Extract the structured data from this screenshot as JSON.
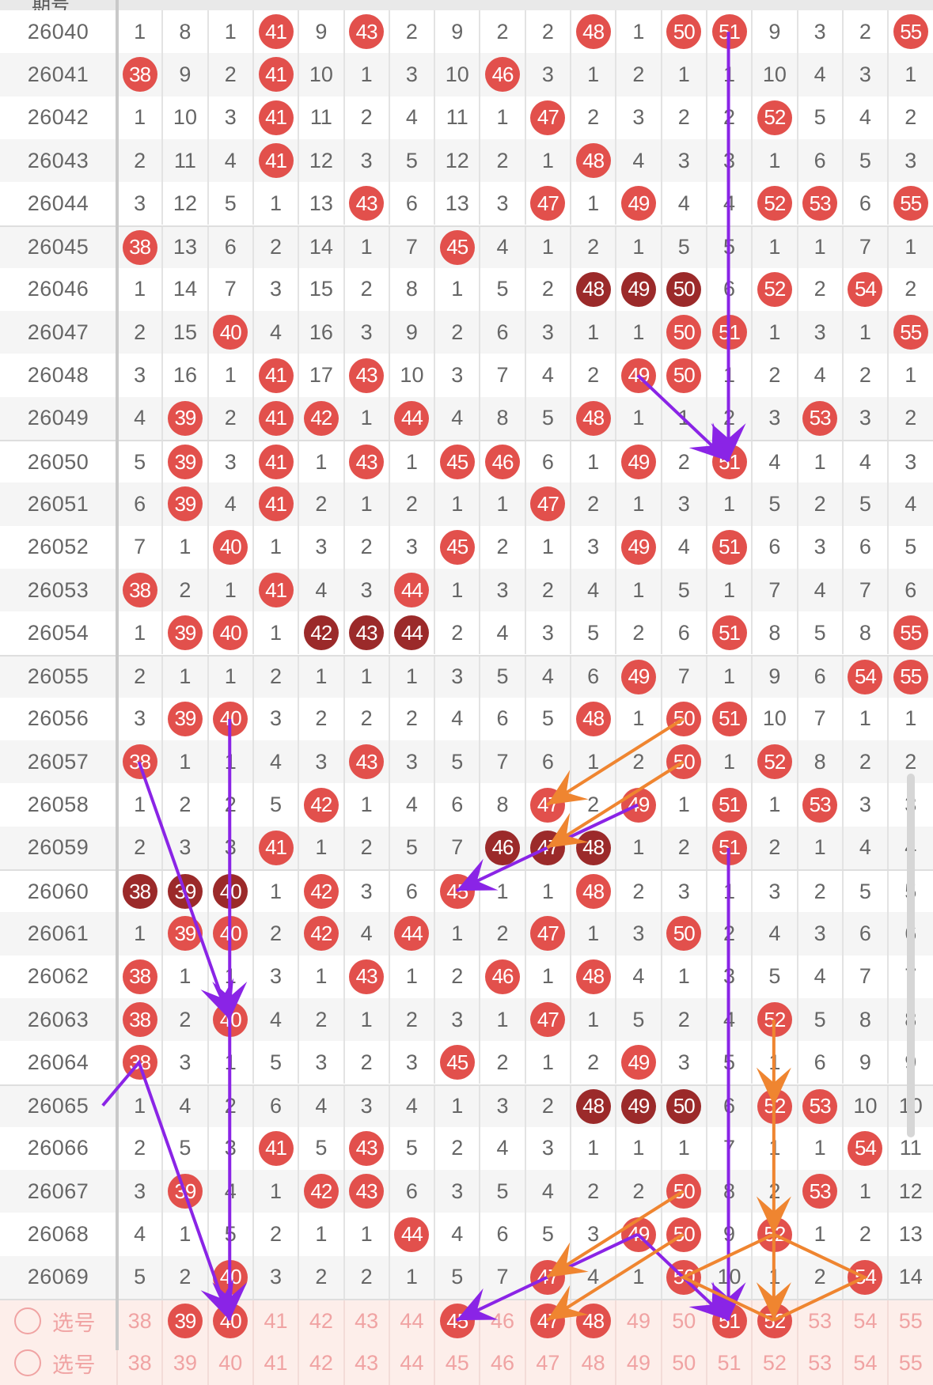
{
  "header": {
    "period_label": "期号"
  },
  "select_label": "选号",
  "colors": {
    "ball": "#e2504c",
    "ball_dark": "#9b2a2a",
    "purple": "#8a24e6",
    "orange": "#ef8530",
    "select_bg": "#fdeeea"
  },
  "chart_data": {
    "type": "table",
    "columns": [
      38,
      39,
      40,
      41,
      42,
      43,
      44,
      45,
      46,
      47,
      48,
      49,
      50,
      51,
      52,
      53,
      54,
      55
    ],
    "rows": [
      {
        "period": "26040",
        "values": [
          1,
          8,
          1,
          41,
          9,
          43,
          2,
          9,
          2,
          2,
          48,
          1,
          50,
          51,
          9,
          3,
          2,
          55
        ],
        "dark": []
      },
      {
        "period": "26041",
        "values": [
          38,
          9,
          2,
          41,
          10,
          1,
          3,
          10,
          46,
          3,
          1,
          2,
          1,
          1,
          10,
          4,
          3,
          1
        ],
        "dark": []
      },
      {
        "period": "26042",
        "values": [
          1,
          10,
          3,
          41,
          11,
          2,
          4,
          11,
          1,
          47,
          2,
          3,
          2,
          2,
          52,
          5,
          4,
          2
        ],
        "dark": []
      },
      {
        "period": "26043",
        "values": [
          2,
          11,
          4,
          41,
          12,
          3,
          5,
          12,
          2,
          1,
          48,
          4,
          3,
          3,
          1,
          6,
          5,
          3
        ],
        "dark": []
      },
      {
        "period": "26044",
        "values": [
          3,
          12,
          5,
          1,
          13,
          43,
          6,
          13,
          3,
          47,
          1,
          49,
          4,
          4,
          52,
          53,
          6,
          55
        ],
        "dark": []
      },
      {
        "period": "26045",
        "values": [
          38,
          13,
          6,
          2,
          14,
          1,
          7,
          45,
          4,
          1,
          2,
          1,
          5,
          5,
          1,
          1,
          7,
          1
        ],
        "dark": []
      },
      {
        "period": "26046",
        "values": [
          1,
          14,
          7,
          3,
          15,
          2,
          8,
          1,
          5,
          2,
          48,
          49,
          50,
          6,
          52,
          2,
          54,
          2
        ],
        "dark": [
          48,
          49,
          50
        ]
      },
      {
        "period": "26047",
        "values": [
          2,
          15,
          40,
          4,
          16,
          3,
          9,
          2,
          6,
          3,
          1,
          1,
          50,
          51,
          1,
          3,
          1,
          55
        ],
        "dark": []
      },
      {
        "period": "26048",
        "values": [
          3,
          16,
          1,
          41,
          17,
          43,
          10,
          3,
          7,
          4,
          2,
          49,
          50,
          1,
          2,
          4,
          2,
          1
        ],
        "dark": []
      },
      {
        "period": "26049",
        "values": [
          4,
          39,
          2,
          41,
          42,
          1,
          44,
          4,
          8,
          5,
          48,
          1,
          1,
          2,
          3,
          53,
          3,
          2
        ],
        "dark": []
      },
      {
        "period": "26050",
        "values": [
          5,
          39,
          3,
          41,
          1,
          43,
          1,
          45,
          46,
          6,
          1,
          49,
          2,
          51,
          4,
          1,
          4,
          3
        ],
        "dark": []
      },
      {
        "period": "26051",
        "values": [
          6,
          39,
          4,
          41,
          2,
          1,
          2,
          1,
          1,
          47,
          2,
          1,
          3,
          1,
          5,
          2,
          5,
          4
        ],
        "dark": []
      },
      {
        "period": "26052",
        "values": [
          7,
          1,
          40,
          1,
          3,
          2,
          3,
          45,
          2,
          1,
          3,
          49,
          4,
          51,
          6,
          3,
          6,
          5
        ],
        "dark": []
      },
      {
        "period": "26053",
        "values": [
          38,
          2,
          1,
          41,
          4,
          3,
          44,
          1,
          3,
          2,
          4,
          1,
          5,
          1,
          7,
          4,
          7,
          6
        ],
        "dark": []
      },
      {
        "period": "26054",
        "values": [
          1,
          39,
          40,
          1,
          42,
          43,
          44,
          2,
          4,
          3,
          5,
          2,
          6,
          51,
          8,
          5,
          8,
          55
        ],
        "dark": [
          42,
          43,
          44
        ]
      },
      {
        "period": "26055",
        "values": [
          2,
          1,
          1,
          2,
          1,
          1,
          1,
          3,
          5,
          4,
          6,
          49,
          7,
          1,
          9,
          6,
          54,
          55
        ],
        "dark": []
      },
      {
        "period": "26056",
        "values": [
          3,
          39,
          40,
          3,
          2,
          2,
          2,
          4,
          6,
          5,
          48,
          1,
          50,
          51,
          10,
          7,
          1,
          1
        ],
        "dark": []
      },
      {
        "period": "26057",
        "values": [
          38,
          1,
          1,
          4,
          3,
          43,
          3,
          5,
          7,
          6,
          1,
          2,
          50,
          1,
          52,
          8,
          2,
          2
        ],
        "dark": []
      },
      {
        "period": "26058",
        "values": [
          1,
          2,
          2,
          5,
          42,
          1,
          4,
          6,
          8,
          47,
          2,
          49,
          1,
          51,
          1,
          53,
          3,
          3
        ],
        "dark": []
      },
      {
        "period": "26059",
        "values": [
          2,
          3,
          3,
          41,
          1,
          2,
          5,
          7,
          46,
          47,
          48,
          1,
          2,
          51,
          2,
          1,
          4,
          4
        ],
        "dark": [
          46,
          47,
          48
        ]
      },
      {
        "period": "26060",
        "values": [
          38,
          39,
          40,
          1,
          42,
          3,
          6,
          45,
          1,
          1,
          48,
          2,
          3,
          1,
          3,
          2,
          5,
          5
        ],
        "dark": [
          38,
          39,
          40
        ]
      },
      {
        "period": "26061",
        "values": [
          1,
          39,
          40,
          2,
          42,
          4,
          44,
          1,
          2,
          47,
          1,
          3,
          50,
          2,
          4,
          3,
          6,
          6
        ],
        "dark": []
      },
      {
        "period": "26062",
        "values": [
          38,
          1,
          1,
          3,
          1,
          43,
          1,
          2,
          46,
          1,
          48,
          4,
          1,
          3,
          5,
          4,
          7,
          7
        ],
        "dark": []
      },
      {
        "period": "26063",
        "values": [
          38,
          2,
          40,
          4,
          2,
          1,
          2,
          3,
          1,
          47,
          1,
          5,
          2,
          4,
          52,
          5,
          8,
          8
        ],
        "dark": []
      },
      {
        "period": "26064",
        "values": [
          38,
          3,
          1,
          5,
          3,
          2,
          3,
          45,
          2,
          1,
          2,
          49,
          3,
          5,
          1,
          6,
          9,
          9
        ],
        "dark": []
      },
      {
        "period": "26065",
        "values": [
          1,
          4,
          2,
          6,
          4,
          3,
          4,
          1,
          3,
          2,
          48,
          49,
          50,
          6,
          52,
          53,
          10,
          10
        ],
        "dark": [
          48,
          49,
          50
        ]
      },
      {
        "period": "26066",
        "values": [
          2,
          5,
          3,
          41,
          5,
          43,
          5,
          2,
          4,
          3,
          1,
          1,
          1,
          7,
          1,
          1,
          54,
          11
        ],
        "dark": []
      },
      {
        "period": "26067",
        "values": [
          3,
          39,
          4,
          1,
          42,
          43,
          6,
          3,
          5,
          4,
          2,
          2,
          50,
          8,
          2,
          53,
          1,
          12
        ],
        "dark": []
      },
      {
        "period": "26068",
        "values": [
          4,
          1,
          5,
          2,
          1,
          1,
          44,
          4,
          6,
          5,
          3,
          49,
          50,
          9,
          52,
          1,
          2,
          13
        ],
        "dark": []
      },
      {
        "period": "26069",
        "values": [
          5,
          2,
          40,
          3,
          2,
          2,
          1,
          5,
          7,
          47,
          4,
          1,
          50,
          10,
          1,
          2,
          54,
          14
        ],
        "dark": []
      }
    ],
    "selected": [
      39,
      40,
      45,
      47,
      48,
      51,
      52
    ],
    "lines": [
      {
        "color": "purple",
        "points": [
          [
            51,
            "26040"
          ],
          [
            51,
            "26050"
          ]
        ]
      },
      {
        "color": "purple",
        "points": [
          [
            49,
            "26048"
          ],
          [
            51,
            "26050"
          ]
        ]
      },
      {
        "color": "purple",
        "points": [
          [
            40,
            "26056"
          ],
          [
            40,
            "26063"
          ]
        ]
      },
      {
        "color": "purple",
        "points": [
          [
            38,
            "26057"
          ],
          [
            40,
            "26063"
          ]
        ]
      },
      {
        "color": "purple",
        "points": [
          [
            49,
            "26058"
          ],
          [
            47,
            "26059"
          ],
          [
            45,
            "26060"
          ]
        ]
      },
      {
        "color": "purple",
        "points": [
          [
            51,
            "26059"
          ],
          [
            51,
            "select"
          ]
        ]
      },
      {
        "color": "purple",
        "points": [
          [
            37.2,
            "26065"
          ],
          [
            38,
            "26064"
          ],
          [
            40,
            "select"
          ]
        ]
      },
      {
        "color": "purple",
        "points": [
          [
            40,
            "26063"
          ],
          [
            40,
            "select"
          ]
        ]
      },
      {
        "color": "purple",
        "points": [
          [
            49,
            "26068"
          ],
          [
            47,
            "26069"
          ],
          [
            45,
            "select"
          ]
        ]
      },
      {
        "color": "purple",
        "points": [
          [
            49,
            "26068"
          ],
          [
            51,
            "select"
          ]
        ]
      },
      {
        "color": "orange",
        "points": [
          [
            50,
            "26056"
          ],
          [
            47,
            "26058"
          ]
        ]
      },
      {
        "color": "orange",
        "points": [
          [
            50,
            "26057"
          ],
          [
            47,
            "26059"
          ]
        ]
      },
      {
        "color": "orange",
        "points": [
          [
            52,
            "26063"
          ],
          [
            52,
            "26065"
          ]
        ]
      },
      {
        "color": "orange",
        "points": [
          [
            52,
            "26065"
          ],
          [
            52,
            "26068"
          ]
        ]
      },
      {
        "color": "orange",
        "points": [
          [
            52,
            "26068"
          ],
          [
            52,
            "select"
          ]
        ]
      },
      {
        "color": "orange",
        "points": [
          [
            50,
            "26067"
          ],
          [
            47,
            "26069"
          ]
        ]
      },
      {
        "color": "orange",
        "points": [
          [
            50,
            "26068"
          ],
          [
            47,
            "select"
          ]
        ]
      },
      {
        "color": "orange",
        "points": [
          [
            52,
            "26068"
          ],
          [
            54,
            "26069"
          ],
          [
            52,
            "select"
          ]
        ],
        "arrow": false
      },
      {
        "color": "orange",
        "points": [
          [
            52,
            "26068"
          ],
          [
            50,
            "26069"
          ],
          [
            52,
            "select"
          ]
        ],
        "arrow": false
      }
    ]
  }
}
